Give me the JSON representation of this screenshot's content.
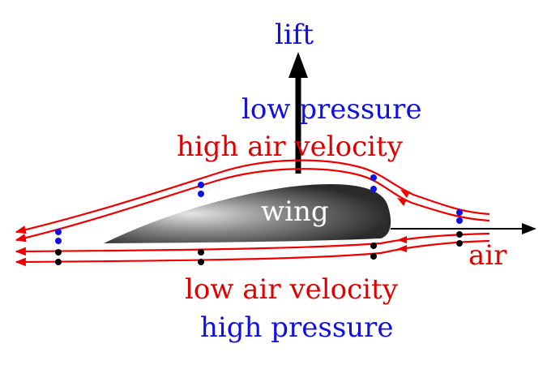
{
  "labels": {
    "lift": "lift",
    "low_pressure": "low pressure",
    "high_air_velocity": "high air velocity",
    "wing": "wing",
    "air": "air",
    "low_air_velocity": "low air velocity",
    "high_pressure": "high pressure"
  },
  "colors": {
    "streamline": "#ee0000",
    "upper_dot": "#1010e0",
    "lower_dot": "#000000",
    "pressure_text": "#1010e0",
    "velocity_text": "#e00000",
    "arrow": "#000000",
    "wing_dark": "#2a2a2a",
    "wing_light": "#e6e6e6"
  }
}
